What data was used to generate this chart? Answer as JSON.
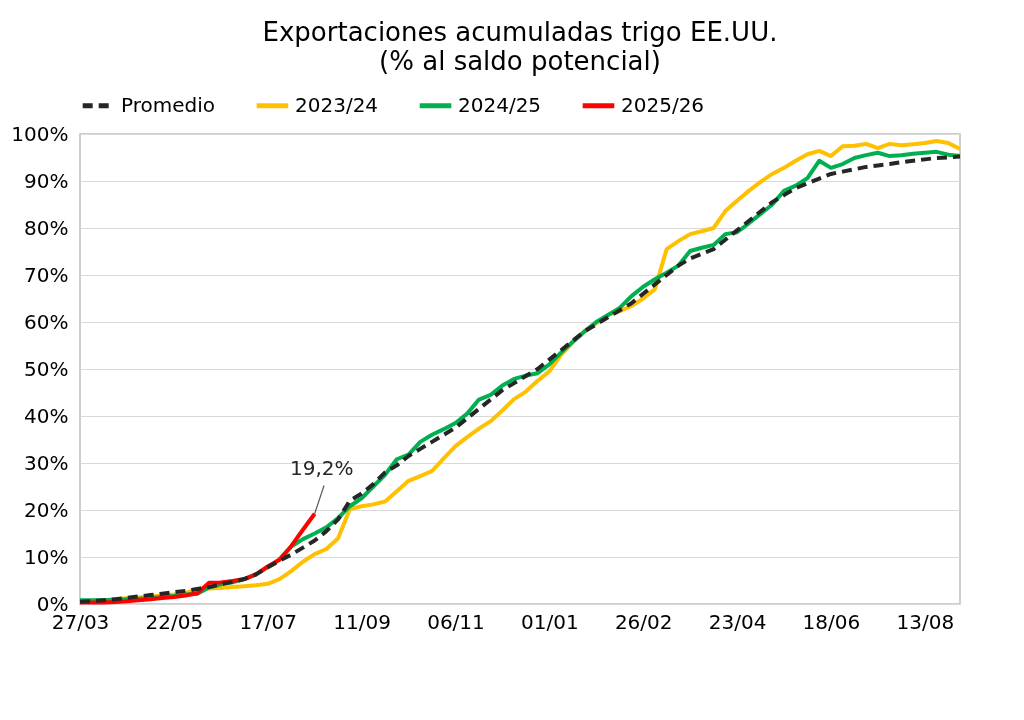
{
  "chart_data": {
    "type": "line",
    "title": "Exportaciones acumuladas trigo EE.UU.",
    "subtitle": "(% al saldo potencial)",
    "categories": [
      "27/03",
      null,
      null,
      null,
      null,
      null,
      null,
      null,
      "22/05",
      null,
      null,
      null,
      null,
      null,
      null,
      null,
      "17/07",
      null,
      null,
      null,
      null,
      null,
      null,
      null,
      "11/09",
      null,
      null,
      null,
      null,
      null,
      null,
      null,
      "06/11",
      null,
      null,
      null,
      null,
      null,
      null,
      null,
      "01/01",
      null,
      null,
      null,
      null,
      null,
      null,
      null,
      "26/02",
      null,
      null,
      null,
      null,
      null,
      null,
      null,
      "23/04",
      null,
      null,
      null,
      null,
      null,
      null,
      null,
      "18/06",
      null,
      null,
      null,
      null,
      null,
      null,
      null,
      "13/08",
      null,
      null,
      null
    ],
    "series": [
      {
        "name": "Promedio",
        "color": "#262626",
        "line_style": "dashed",
        "values": [
          0.5,
          0.6,
          0.8,
          1.0,
          1.3,
          1.6,
          1.9,
          2.2,
          2.5,
          2.8,
          3.2,
          3.6,
          4.2,
          4.7,
          5.3,
          6.3,
          7.8,
          9.2,
          10.5,
          12,
          13.5,
          15.5,
          18,
          22,
          23.5,
          25.5,
          28,
          29.5,
          31.5,
          33,
          34.5,
          36,
          37.5,
          39.5,
          41.5,
          43.5,
          45.5,
          47,
          48.5,
          50,
          52,
          54,
          56,
          58,
          59.5,
          61,
          62.5,
          64,
          66,
          68,
          70,
          72,
          73.5,
          74.5,
          75.5,
          77.5,
          79.5,
          81.5,
          83.5,
          85.5,
          87,
          88.5,
          89.5,
          90.5,
          91.5,
          92,
          92.5,
          93,
          93.3,
          93.6,
          94,
          94.3,
          94.6,
          94.9,
          95,
          95.2
        ]
      },
      {
        "name": "2023/24",
        "color": "#ffc000",
        "line_style": "solid",
        "values": [
          null,
          null,
          0.8,
          1.0,
          1.2,
          1.4,
          1.6,
          1.8,
          2.0,
          2.3,
          3.2,
          3.3,
          3.4,
          3.6,
          3.8,
          4.0,
          4.3,
          5.3,
          7.0,
          9.0,
          10.6,
          11.7,
          14,
          20.2,
          20.8,
          21.2,
          21.8,
          24,
          26.2,
          27.2,
          28.3,
          31,
          33.6,
          35.5,
          37.3,
          38.9,
          41.2,
          43.6,
          45.2,
          47.5,
          49.5,
          53,
          55.7,
          58,
          59.7,
          61.5,
          62.3,
          63.4,
          65,
          67,
          75.5,
          77.2,
          78.7,
          79.3,
          80,
          83.6,
          85.8,
          87.9,
          89.8,
          91.5,
          92.8,
          94.3,
          95.7,
          96.4,
          95.3,
          97.4,
          97.5,
          97.9,
          97,
          97.9,
          97.6,
          97.8,
          98.1,
          98.5,
          98.1,
          96.8
        ]
      },
      {
        "name": "2024/25",
        "color": "#00b050",
        "line_style": "solid",
        "values": [
          0.8,
          0.8,
          0.8,
          0.9,
          1.0,
          1.1,
          1.3,
          1.5,
          1.7,
          2.0,
          2.2,
          3.5,
          4.2,
          4.6,
          5.3,
          6.3,
          7.8,
          9.5,
          12.2,
          13.8,
          15,
          16.3,
          18.3,
          20.8,
          22.5,
          25,
          27.5,
          30.8,
          31.8,
          34.5,
          36,
          37.2,
          38.5,
          40.5,
          43.5,
          44.5,
          46.5,
          47.9,
          48.6,
          49.1,
          51,
          53.5,
          55.8,
          58,
          60,
          61.5,
          63,
          65.5,
          67.5,
          69.1,
          70.5,
          72,
          75.1,
          75.8,
          76.4,
          78.7,
          79.1,
          81,
          83,
          85,
          87.9,
          89,
          90.6,
          94.3,
          92.8,
          93.6,
          94.9,
          95.5,
          96,
          95.3,
          95.5,
          95.8,
          96,
          96.2,
          95.6,
          95.3
        ]
      },
      {
        "name": "2025/26",
        "color": "#ff0000",
        "line_style": "solid",
        "values": [
          0.3,
          0.3,
          0.3,
          0.4,
          0.6,
          0.8,
          1.0,
          1.3,
          1.5,
          1.8,
          2.3,
          4.5,
          4.6,
          4.9,
          5.3,
          6.3,
          8.0,
          9.4,
          12.3,
          15.8,
          19.2,
          null,
          null,
          null,
          null,
          null,
          null,
          null,
          null,
          null,
          null,
          null,
          null,
          null,
          null,
          null,
          null,
          null,
          null,
          null,
          null,
          null,
          null,
          null,
          null,
          null,
          null,
          null,
          null,
          null,
          null,
          null,
          null,
          null,
          null,
          null,
          null,
          null,
          null,
          null,
          null,
          null,
          null,
          null,
          null,
          null,
          null,
          null,
          null,
          null,
          null,
          null,
          null,
          null,
          null,
          null
        ]
      }
    ],
    "ylim": [
      0,
      100
    ],
    "yticks": [
      {
        "value": 0,
        "label": "0%"
      },
      {
        "value": 10,
        "label": "10%"
      },
      {
        "value": 20,
        "label": "20%"
      },
      {
        "value": 30,
        "label": "30%"
      },
      {
        "value": 40,
        "label": "40%"
      },
      {
        "value": 50,
        "label": "50%"
      },
      {
        "value": 60,
        "label": "60%"
      },
      {
        "value": 70,
        "label": "70%"
      },
      {
        "value": 80,
        "label": "80%"
      },
      {
        "value": 90,
        "label": "90%"
      },
      {
        "value": 100,
        "label": "100%"
      }
    ],
    "grid": "y",
    "legend": "top",
    "marker": "none",
    "annotations": [
      "19,2%"
    ]
  }
}
